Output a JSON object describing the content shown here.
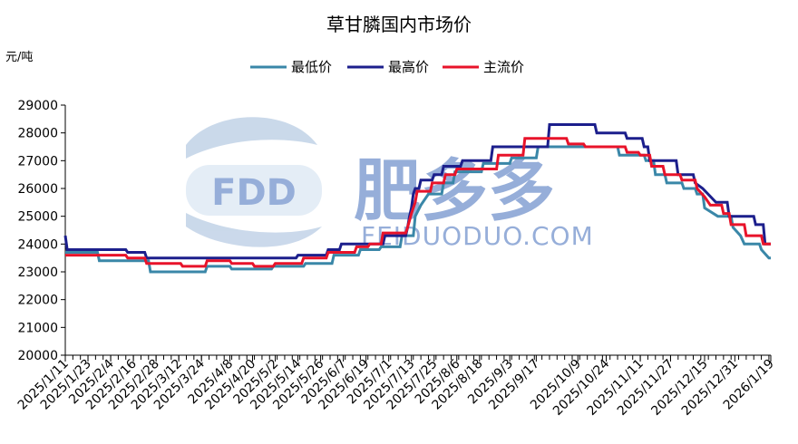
{
  "title": "草甘膦国内市场价",
  "unit_label": "元/吨",
  "watermark": {
    "logo_text": "FDD",
    "brand": "肥多多",
    "url": "FEIDUODUO.COM"
  },
  "colors": {
    "min": "#3a87a8",
    "max": "#1c1f8c",
    "main": "#e8132a",
    "axis": "#000000",
    "watermark_blue": "#6f8fcb",
    "watermark_light": "#b7cbe3"
  },
  "chart_data": {
    "type": "line",
    "title": "草甘膦国内市场价",
    "ylabel": "元/吨",
    "xlabel": "",
    "ylim": [
      20000,
      29000
    ],
    "yticks": [
      20000,
      21000,
      22000,
      23000,
      24000,
      25000,
      26000,
      27000,
      28000,
      29000
    ],
    "ytick_labels": [
      "20000",
      "21000",
      "22000",
      "23000",
      "24000",
      "25000",
      "26000",
      "27000",
      "28000",
      "29000"
    ],
    "xlim": [
      "2025-01-11",
      "2026-01-19"
    ],
    "xticks": [
      "2025-01-11",
      "2025-01-23",
      "2025-02-04",
      "2025-02-16",
      "2025-02-28",
      "2025-03-12",
      "2025-03-24",
      "2025-04-08",
      "2025-04-20",
      "2025-05-02",
      "2025-05-14",
      "2025-05-26",
      "2025-06-07",
      "2025-06-19",
      "2025-07-01",
      "2025-07-13",
      "2025-07-25",
      "2025-08-06",
      "2025-08-18",
      "2025-09-03",
      "2025-09-17",
      "2025-10-09",
      "2025-10-24",
      "2025-11-11",
      "2025-11-27",
      "2025-12-15",
      "2025-12-31",
      "2026-01-19"
    ],
    "xtick_labels": [
      "2025/1/11",
      "2025/1/23",
      "2025/2/4",
      "2025/2/16",
      "2025/2/28",
      "2025/3/12",
      "2025/3/24",
      "2025/4/8",
      "2025/4/20",
      "2025/5/2",
      "2025/5/14",
      "2025/5/26",
      "2025/6/7",
      "2025/6/19",
      "2025/7/1",
      "2025/7/13",
      "2025/7/25",
      "2025/8/6",
      "2025/8/18",
      "2025/9/3",
      "2025/9/17",
      "2025/10/9",
      "2025/10/24",
      "2025/11/11",
      "2025/11/27",
      "2025/12/15",
      "2025/12/31",
      "2026/1/19"
    ],
    "grid": false,
    "legend": "top-center",
    "series": [
      {
        "name": "最低价",
        "color": "#3a87a8",
        "points": [
          [
            "2025-01-11",
            23700
          ],
          [
            "2025-01-28",
            23700
          ],
          [
            "2025-01-29",
            23400
          ],
          [
            "2025-02-24",
            23400
          ],
          [
            "2025-02-25",
            23000
          ],
          [
            "2025-03-26",
            23000
          ],
          [
            "2025-03-27",
            23200
          ],
          [
            "2025-04-08",
            23200
          ],
          [
            "2025-04-09",
            23100
          ],
          [
            "2025-04-30",
            23100
          ],
          [
            "2025-05-01",
            23200
          ],
          [
            "2025-05-17",
            23200
          ],
          [
            "2025-05-18",
            23300
          ],
          [
            "2025-06-01",
            23300
          ],
          [
            "2025-06-02",
            23600
          ],
          [
            "2025-06-15",
            23600
          ],
          [
            "2025-06-16",
            23800
          ],
          [
            "2025-06-26",
            23800
          ],
          [
            "2025-06-27",
            23900
          ],
          [
            "2025-07-07",
            23900
          ],
          [
            "2025-07-08",
            24300
          ],
          [
            "2025-07-14",
            24300
          ],
          [
            "2025-07-15",
            25000
          ],
          [
            "2025-07-18",
            25400
          ],
          [
            "2025-07-22",
            25800
          ],
          [
            "2025-07-29",
            25800
          ],
          [
            "2025-07-30",
            26200
          ],
          [
            "2025-08-04",
            26200
          ],
          [
            "2025-08-05",
            26600
          ],
          [
            "2025-08-19",
            26600
          ],
          [
            "2025-08-20",
            26900
          ],
          [
            "2025-09-03",
            26900
          ],
          [
            "2025-09-04",
            27100
          ],
          [
            "2025-09-17",
            27100
          ],
          [
            "2025-09-18",
            27500
          ],
          [
            "2025-10-30",
            27500
          ],
          [
            "2025-10-31",
            27200
          ],
          [
            "2025-11-13",
            27200
          ],
          [
            "2025-11-14",
            27000
          ],
          [
            "2025-11-18",
            27000
          ],
          [
            "2025-11-19",
            26500
          ],
          [
            "2025-11-24",
            26500
          ],
          [
            "2025-11-25",
            26200
          ],
          [
            "2025-12-03",
            26200
          ],
          [
            "2025-12-04",
            26000
          ],
          [
            "2025-12-10",
            26000
          ],
          [
            "2025-12-11",
            25800
          ],
          [
            "2025-12-14",
            25800
          ],
          [
            "2025-12-15",
            25300
          ],
          [
            "2025-12-22",
            25000
          ],
          [
            "2025-12-29",
            25000
          ],
          [
            "2025-12-30",
            24600
          ],
          [
            "2026-01-03",
            24300
          ],
          [
            "2026-01-05",
            24000
          ],
          [
            "2026-01-13",
            24000
          ],
          [
            "2026-01-14",
            23800
          ],
          [
            "2026-01-18",
            23500
          ],
          [
            "2026-01-19",
            23500
          ]
        ]
      },
      {
        "name": "最高价",
        "color": "#1c1f8c",
        "points": [
          [
            "2025-01-11",
            24300
          ],
          [
            "2025-01-12",
            23800
          ],
          [
            "2025-02-12",
            23800
          ],
          [
            "2025-02-13",
            23700
          ],
          [
            "2025-02-22",
            23700
          ],
          [
            "2025-02-23",
            23500
          ],
          [
            "2025-05-13",
            23500
          ],
          [
            "2025-05-14",
            23600
          ],
          [
            "2025-05-29",
            23600
          ],
          [
            "2025-05-30",
            23800
          ],
          [
            "2025-06-05",
            23800
          ],
          [
            "2025-06-06",
            24000
          ],
          [
            "2025-06-28",
            24000
          ],
          [
            "2025-06-29",
            24300
          ],
          [
            "2025-07-10",
            24300
          ],
          [
            "2025-07-11",
            24600
          ],
          [
            "2025-07-12",
            25000
          ],
          [
            "2025-07-13",
            25300
          ],
          [
            "2025-07-14",
            25800
          ],
          [
            "2025-07-15",
            26000
          ],
          [
            "2025-07-17",
            26000
          ],
          [
            "2025-07-18",
            26300
          ],
          [
            "2025-07-24",
            26300
          ],
          [
            "2025-07-25",
            26500
          ],
          [
            "2025-07-29",
            26500
          ],
          [
            "2025-07-30",
            26800
          ],
          [
            "2025-08-08",
            26800
          ],
          [
            "2025-08-09",
            27000
          ],
          [
            "2025-08-24",
            27000
          ],
          [
            "2025-08-25",
            27500
          ],
          [
            "2025-09-23",
            27500
          ],
          [
            "2025-09-24",
            28300
          ],
          [
            "2025-10-18",
            28300
          ],
          [
            "2025-10-19",
            28000
          ],
          [
            "2025-11-03",
            28000
          ],
          [
            "2025-11-04",
            27800
          ],
          [
            "2025-11-12",
            27800
          ],
          [
            "2025-11-13",
            27500
          ],
          [
            "2025-11-15",
            27500
          ],
          [
            "2025-11-16",
            27000
          ],
          [
            "2025-11-30",
            27000
          ],
          [
            "2025-12-01",
            26500
          ],
          [
            "2025-12-09",
            26500
          ],
          [
            "2025-12-10",
            26200
          ],
          [
            "2025-12-14",
            26000
          ],
          [
            "2025-12-21",
            25500
          ],
          [
            "2025-12-27",
            25500
          ],
          [
            "2025-12-28",
            25000
          ],
          [
            "2026-01-10",
            25000
          ],
          [
            "2026-01-11",
            24700
          ],
          [
            "2026-01-15",
            24700
          ],
          [
            "2026-01-16",
            24000
          ],
          [
            "2026-01-19",
            24000
          ]
        ]
      },
      {
        "name": "主流价",
        "color": "#e8132a",
        "points": [
          [
            "2025-01-11",
            23600
          ],
          [
            "2025-02-12",
            23600
          ],
          [
            "2025-02-13",
            23500
          ],
          [
            "2025-02-22",
            23500
          ],
          [
            "2025-02-23",
            23300
          ],
          [
            "2025-03-13",
            23300
          ],
          [
            "2025-03-14",
            23200
          ],
          [
            "2025-03-26",
            23200
          ],
          [
            "2025-03-27",
            23400
          ],
          [
            "2025-04-08",
            23400
          ],
          [
            "2025-04-09",
            23300
          ],
          [
            "2025-04-20",
            23300
          ],
          [
            "2025-04-21",
            23200
          ],
          [
            "2025-05-01",
            23200
          ],
          [
            "2025-05-02",
            23300
          ],
          [
            "2025-05-16",
            23300
          ],
          [
            "2025-05-17",
            23500
          ],
          [
            "2025-05-29",
            23500
          ],
          [
            "2025-05-30",
            23700
          ],
          [
            "2025-06-13",
            23700
          ],
          [
            "2025-06-14",
            23900
          ],
          [
            "2025-06-20",
            23900
          ],
          [
            "2025-06-21",
            24000
          ],
          [
            "2025-06-27",
            24000
          ],
          [
            "2025-06-28",
            24400
          ],
          [
            "2025-07-10",
            24400
          ],
          [
            "2025-07-11",
            24600
          ],
          [
            "2025-07-13",
            25100
          ],
          [
            "2025-07-15",
            25500
          ],
          [
            "2025-07-16",
            25900
          ],
          [
            "2025-07-23",
            25900
          ],
          [
            "2025-07-24",
            26200
          ],
          [
            "2025-07-30",
            26200
          ],
          [
            "2025-07-31",
            26500
          ],
          [
            "2025-08-05",
            26500
          ],
          [
            "2025-08-06",
            26700
          ],
          [
            "2025-08-27",
            26700
          ],
          [
            "2025-08-28",
            27200
          ],
          [
            "2025-09-10",
            27200
          ],
          [
            "2025-09-11",
            27800
          ],
          [
            "2025-10-03",
            27800
          ],
          [
            "2025-10-04",
            27600
          ],
          [
            "2025-10-12",
            27600
          ],
          [
            "2025-10-13",
            27500
          ],
          [
            "2025-11-03",
            27500
          ],
          [
            "2025-11-04",
            27300
          ],
          [
            "2025-11-10",
            27300
          ],
          [
            "2025-11-11",
            27200
          ],
          [
            "2025-11-16",
            27200
          ],
          [
            "2025-11-17",
            26800
          ],
          [
            "2025-11-23",
            26800
          ],
          [
            "2025-11-24",
            26500
          ],
          [
            "2025-12-02",
            26500
          ],
          [
            "2025-12-03",
            26300
          ],
          [
            "2025-12-10",
            26300
          ],
          [
            "2025-12-11",
            26000
          ],
          [
            "2025-12-15",
            25700
          ],
          [
            "2025-12-18",
            25400
          ],
          [
            "2025-12-24",
            25400
          ],
          [
            "2025-12-25",
            25100
          ],
          [
            "2025-12-28",
            25100
          ],
          [
            "2025-12-29",
            24700
          ],
          [
            "2026-01-05",
            24700
          ],
          [
            "2026-01-06",
            24300
          ],
          [
            "2026-01-14",
            24300
          ],
          [
            "2026-01-15",
            24000
          ],
          [
            "2026-01-19",
            24000
          ]
        ]
      }
    ]
  }
}
